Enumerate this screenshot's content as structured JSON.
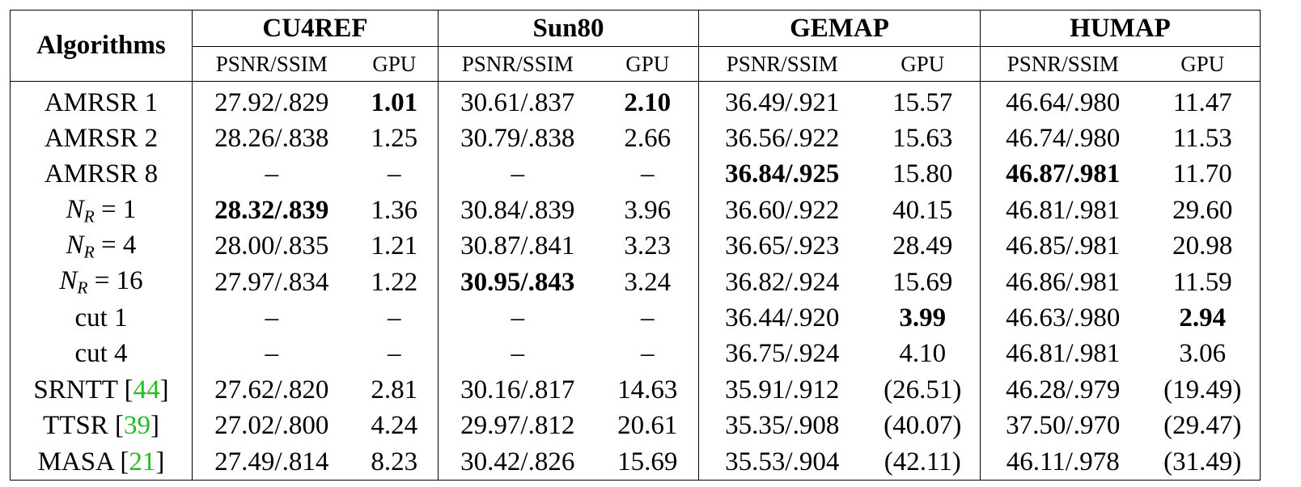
{
  "header": {
    "algorithms": "Algorithms",
    "groups": [
      "CU4REF",
      "Sun80",
      "GEMAP",
      "HUMAP"
    ],
    "psnr_ssim": "PSNR/SSIM",
    "gpu": "GPU"
  },
  "rows": [
    {
      "label": "AMRSR 1",
      "cells": [
        "27.92/.829",
        "1.01",
        "30.61/.837",
        "2.10",
        "36.49/.921",
        "15.57",
        "46.64/.980",
        "11.47"
      ],
      "bold": [
        1,
        3
      ]
    },
    {
      "label": "AMRSR 2",
      "cells": [
        "28.26/.838",
        "1.25",
        "30.79/.838",
        "2.66",
        "36.56/.922",
        "15.63",
        "46.74/.980",
        "11.53"
      ],
      "bold": []
    },
    {
      "label": "AMRSR 8",
      "cells": [
        "–",
        "–",
        "–",
        "–",
        "36.84/.925",
        "15.80",
        "46.87/.981",
        "11.70"
      ],
      "bold": [
        4,
        6
      ]
    },
    {
      "label_math": {
        "var": "N",
        "sub": "R",
        "rhs": " = 1"
      },
      "cells": [
        "28.32/.839",
        "1.36",
        "30.84/.839",
        "3.96",
        "36.60/.922",
        "40.15",
        "46.81/.981",
        "29.60"
      ],
      "bold": [
        0
      ]
    },
    {
      "label_math": {
        "var": "N",
        "sub": "R",
        "rhs": " = 4"
      },
      "cells": [
        "28.00/.835",
        "1.21",
        "30.87/.841",
        "3.23",
        "36.65/.923",
        "28.49",
        "46.85/.981",
        "20.98"
      ],
      "bold": []
    },
    {
      "label_math": {
        "var": "N",
        "sub": "R",
        "rhs": " = 16"
      },
      "cells": [
        "27.97/.834",
        "1.22",
        "30.95/.843",
        "3.24",
        "36.82/.924",
        "15.69",
        "46.86/.981",
        "11.59"
      ],
      "bold": [
        2
      ]
    },
    {
      "label": "cut 1",
      "cells": [
        "–",
        "–",
        "–",
        "–",
        "36.44/.920",
        "3.99",
        "46.63/.980",
        "2.94"
      ],
      "bold": [
        5,
        7
      ]
    },
    {
      "label": "cut 4",
      "cells": [
        "–",
        "–",
        "–",
        "–",
        "36.75/.924",
        "4.10",
        "46.81/.981",
        "3.06"
      ],
      "bold": []
    },
    {
      "label": "SRNTT",
      "cite": "44",
      "cells": [
        "27.62/.820",
        "2.81",
        "30.16/.817",
        "14.63",
        "35.91/.912",
        "(26.51)",
        "46.28/.979",
        "(19.49)"
      ],
      "bold": []
    },
    {
      "label": "TTSR",
      "cite": "39",
      "cells": [
        "27.02/.800",
        "4.24",
        "29.97/.812",
        "20.61",
        "35.35/.908",
        "(40.07)",
        "37.50/.970",
        "(29.47)"
      ],
      "bold": []
    },
    {
      "label": "MASA",
      "cite": "21",
      "cells": [
        "27.49/.814",
        "8.23",
        "30.42/.826",
        "15.69",
        "35.53/.904",
        "(42.11)",
        "46.11/.978",
        "(31.49)"
      ],
      "bold": []
    }
  ],
  "colors": {
    "citation": "#22bb22",
    "text": "#000000"
  }
}
